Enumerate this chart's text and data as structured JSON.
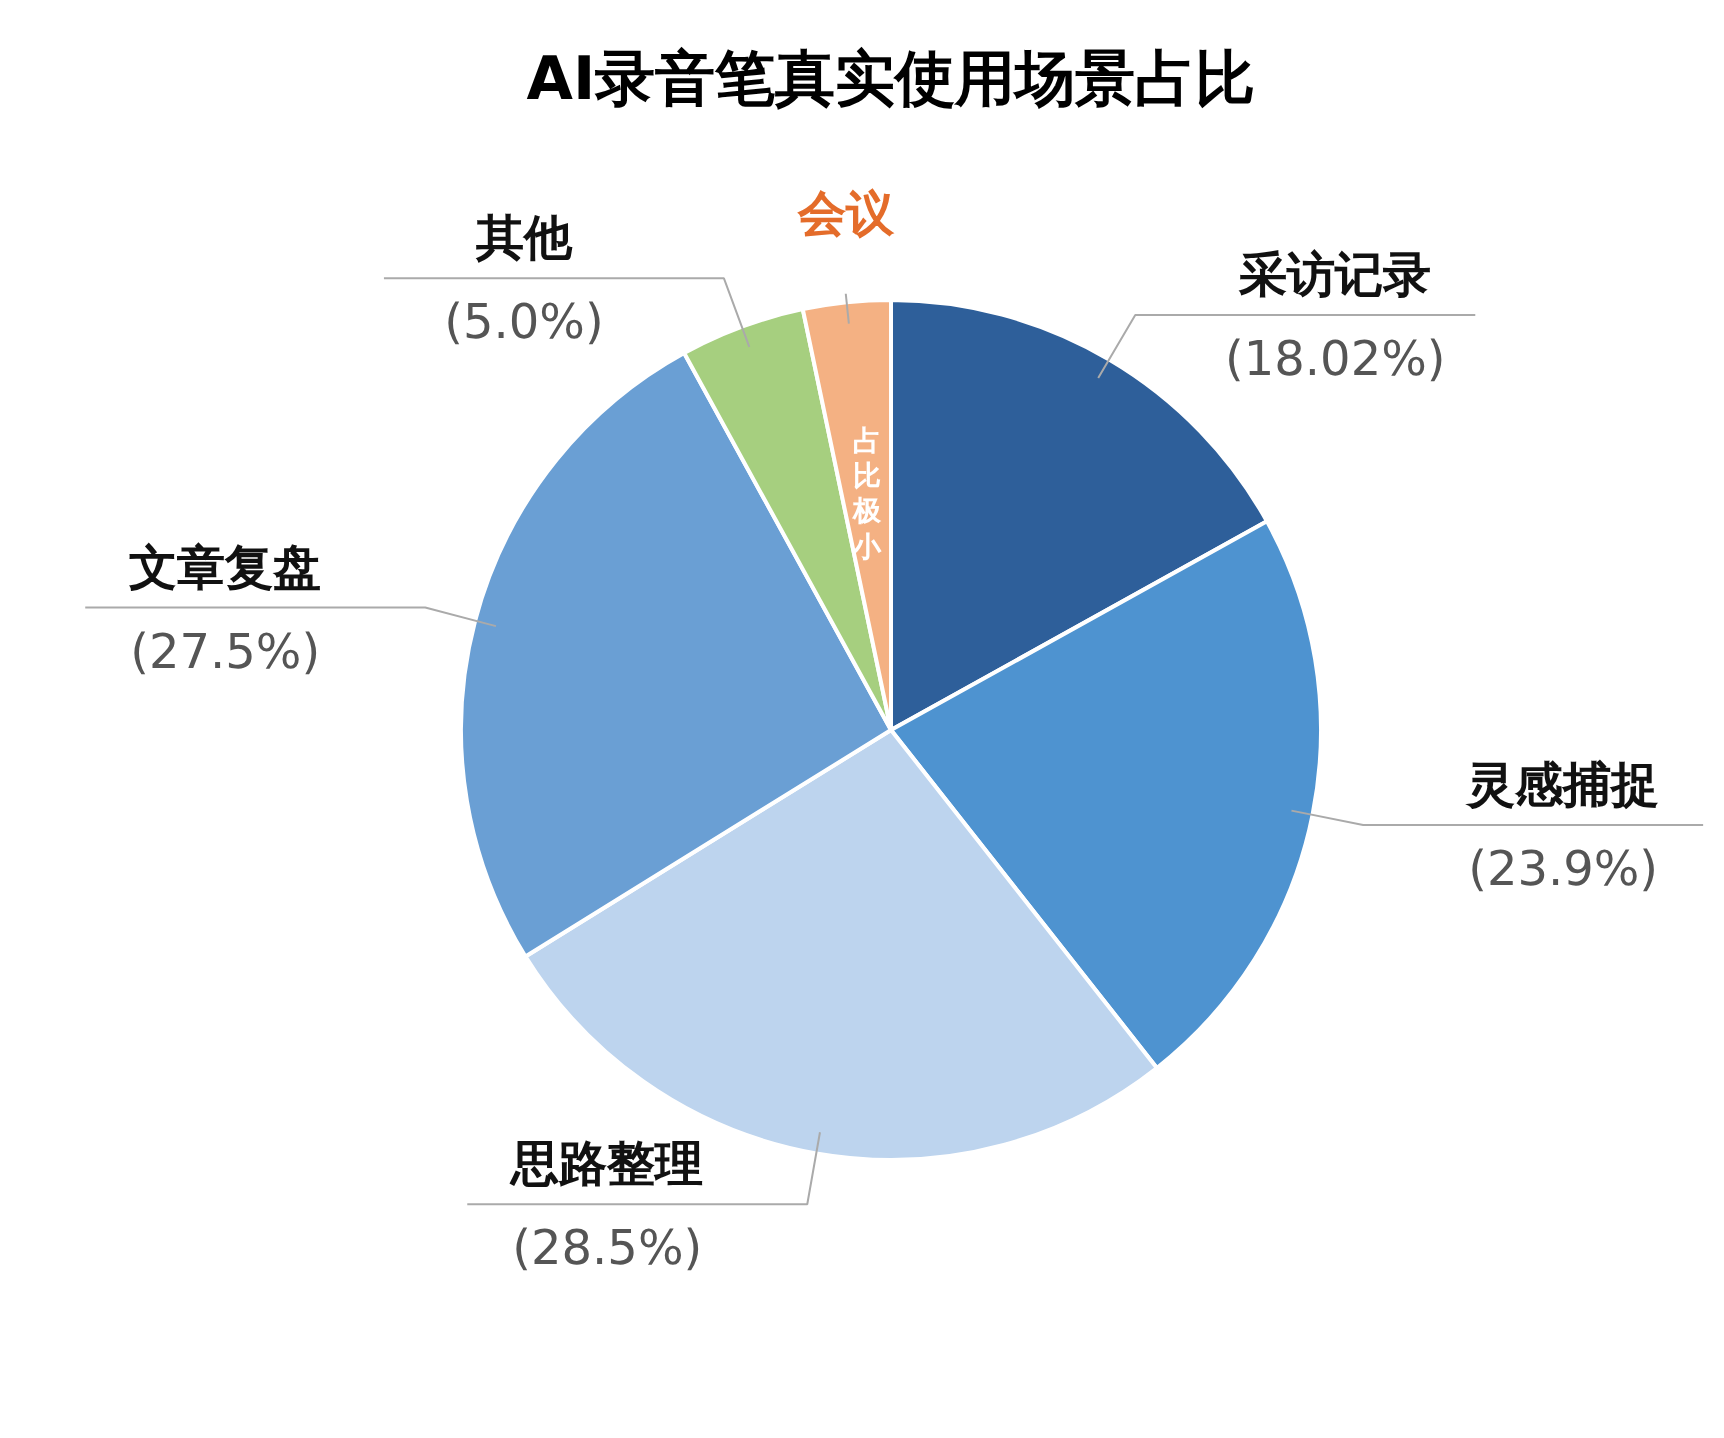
{
  "chart_data": {
    "type": "pie",
    "title": "AI录音笔真实使用场景占比",
    "categories": [
      "采访记录",
      "灵感捕捉",
      "思路整理",
      "文章复盘",
      "其他",
      "会议"
    ],
    "values": [
      18.02,
      23.9,
      28.5,
      27.5,
      5.0,
      3.5
    ],
    "value_labels": [
      "(18.02%)",
      "(23.9%)",
      "(28.5%)",
      "(27.5%)",
      "(5.0%)",
      null
    ],
    "colors": [
      "#2e5f9a",
      "#4e93d0",
      "#bdd4ee",
      "#6a9fd4",
      "#a6cf7f",
      "#f4b183"
    ],
    "annotations": [
      "占比极小"
    ]
  }
}
